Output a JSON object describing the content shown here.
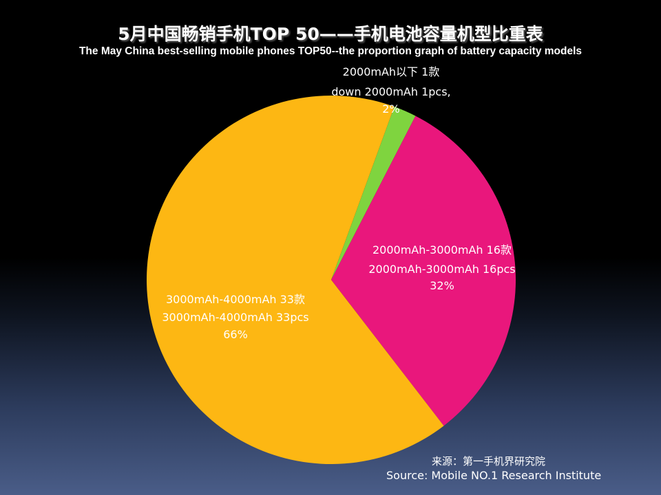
{
  "chart_data": {
    "type": "pie",
    "title": "5月中国畅销手机TOP 50——手机电池容量机型比重表",
    "subtitle": "The  May China best-selling mobile phones TOP50--the proportion graph of battery capacity models",
    "slices": [
      {
        "lines": [
          "2000mAh以下 1款",
          "down 2000mAh 1pcs,",
          "2%"
        ],
        "count": 1,
        "value": 2,
        "color": "#7fd43f"
      },
      {
        "lines": [
          "2000mAh-3000mAh 16款",
          "2000mAh-3000mAh 16pcs",
          "32%"
        ],
        "count": 16,
        "value": 32,
        "color": "#e9177c"
      },
      {
        "lines": [
          "3000mAh-4000mAh 33款",
          "3000mAh-4000mAh 33pcs",
          "66%"
        ],
        "count": 33,
        "value": 66,
        "color": "#fdb713"
      }
    ]
  },
  "source": {
    "cn": "来源：第一手机界研究院",
    "en": "Source: Mobile NO.1 Research Institute"
  }
}
